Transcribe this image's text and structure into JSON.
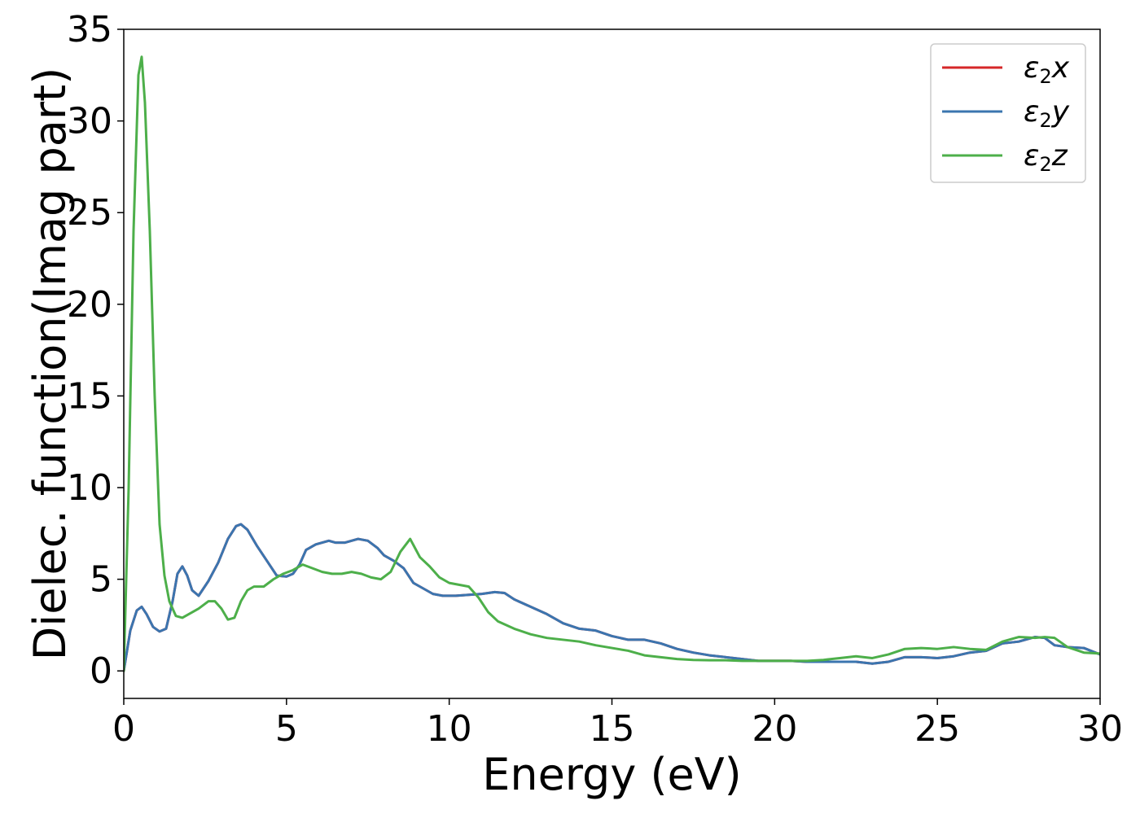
{
  "chart_data": {
    "type": "line",
    "title": "",
    "xlabel": "Energy (eV)",
    "ylabel": "Dielec. function(Imag part)",
    "xlim": [
      0,
      30
    ],
    "ylim": [
      -1.5,
      35
    ],
    "xticks": [
      0,
      5,
      10,
      15,
      20,
      25,
      30
    ],
    "yticks": [
      0,
      5,
      10,
      15,
      20,
      25,
      30,
      35
    ],
    "grid": false,
    "legend_position": "top-right",
    "series": [
      {
        "name": "ε2x",
        "legend_base": "ε",
        "legend_sub": "2",
        "legend_tail": "x",
        "color": "#d62728",
        "x": [
          0,
          0.2,
          0.4,
          0.55,
          0.7,
          0.9,
          1.1,
          1.3,
          1.5,
          1.65,
          1.8,
          1.95,
          2.1,
          2.3,
          2.6,
          2.9,
          3.2,
          3.45,
          3.6,
          3.8,
          4.1,
          4.4,
          4.7,
          5.0,
          5.2,
          5.4,
          5.6,
          5.9,
          6.1,
          6.3,
          6.5,
          6.8,
          7.0,
          7.2,
          7.5,
          7.8,
          8.0,
          8.3,
          8.6,
          8.9,
          9.2,
          9.5,
          9.8,
          10.2,
          10.6,
          11.0,
          11.4,
          11.7,
          12.0,
          12.5,
          13.0,
          13.5,
          14.0,
          14.5,
          15.0,
          15.5,
          16.0,
          16.5,
          17.0,
          17.5,
          18.0,
          18.5,
          19.0,
          19.5,
          20.0,
          20.5,
          21.0,
          21.5,
          22.0,
          22.5,
          23.0,
          23.5,
          24.0,
          24.5,
          25.0,
          25.5,
          26.0,
          26.5,
          27.0,
          27.5,
          28.0,
          28.3,
          28.6,
          29.0,
          29.5,
          30.0
        ],
        "y": [
          0,
          2.2,
          3.3,
          3.5,
          3.1,
          2.4,
          2.15,
          2.3,
          3.8,
          5.3,
          5.7,
          5.2,
          4.4,
          4.1,
          4.9,
          5.9,
          7.2,
          7.9,
          8.0,
          7.7,
          6.8,
          6.0,
          5.2,
          5.15,
          5.3,
          5.8,
          6.6,
          6.9,
          7.0,
          7.1,
          7.0,
          7.0,
          7.1,
          7.2,
          7.1,
          6.7,
          6.3,
          6.0,
          5.6,
          4.8,
          4.5,
          4.2,
          4.1,
          4.1,
          4.15,
          4.2,
          4.3,
          4.25,
          3.9,
          3.5,
          3.1,
          2.6,
          2.3,
          2.2,
          1.9,
          1.7,
          1.7,
          1.5,
          1.2,
          1.0,
          0.85,
          0.75,
          0.65,
          0.55,
          0.55,
          0.55,
          0.5,
          0.5,
          0.5,
          0.5,
          0.4,
          0.5,
          0.75,
          0.75,
          0.7,
          0.8,
          1.0,
          1.1,
          1.5,
          1.6,
          1.85,
          1.8,
          1.4,
          1.3,
          1.25,
          0.9
        ]
      },
      {
        "name": "ε2y",
        "legend_base": "ε",
        "legend_sub": "2",
        "legend_tail": "y",
        "color": "#3b75af",
        "x": [
          0,
          0.2,
          0.4,
          0.55,
          0.7,
          0.9,
          1.1,
          1.3,
          1.5,
          1.65,
          1.8,
          1.95,
          2.1,
          2.3,
          2.6,
          2.9,
          3.2,
          3.45,
          3.6,
          3.8,
          4.1,
          4.4,
          4.7,
          5.0,
          5.2,
          5.4,
          5.6,
          5.9,
          6.1,
          6.3,
          6.5,
          6.8,
          7.0,
          7.2,
          7.5,
          7.8,
          8.0,
          8.3,
          8.6,
          8.9,
          9.2,
          9.5,
          9.8,
          10.2,
          10.6,
          11.0,
          11.4,
          11.7,
          12.0,
          12.5,
          13.0,
          13.5,
          14.0,
          14.5,
          15.0,
          15.5,
          16.0,
          16.5,
          17.0,
          17.5,
          18.0,
          18.5,
          19.0,
          19.5,
          20.0,
          20.5,
          21.0,
          21.5,
          22.0,
          22.5,
          23.0,
          23.5,
          24.0,
          24.5,
          25.0,
          25.5,
          26.0,
          26.5,
          27.0,
          27.5,
          28.0,
          28.3,
          28.6,
          29.0,
          29.5,
          30.0
        ],
        "y": [
          0,
          2.2,
          3.3,
          3.5,
          3.1,
          2.4,
          2.15,
          2.3,
          3.8,
          5.3,
          5.7,
          5.2,
          4.4,
          4.1,
          4.9,
          5.9,
          7.2,
          7.9,
          8.0,
          7.7,
          6.8,
          6.0,
          5.2,
          5.15,
          5.3,
          5.8,
          6.6,
          6.9,
          7.0,
          7.1,
          7.0,
          7.0,
          7.1,
          7.2,
          7.1,
          6.7,
          6.3,
          6.0,
          5.6,
          4.8,
          4.5,
          4.2,
          4.1,
          4.1,
          4.15,
          4.2,
          4.3,
          4.25,
          3.9,
          3.5,
          3.1,
          2.6,
          2.3,
          2.2,
          1.9,
          1.7,
          1.7,
          1.5,
          1.2,
          1.0,
          0.85,
          0.75,
          0.65,
          0.55,
          0.55,
          0.55,
          0.5,
          0.5,
          0.5,
          0.5,
          0.4,
          0.5,
          0.75,
          0.75,
          0.7,
          0.8,
          1.0,
          1.1,
          1.5,
          1.6,
          1.85,
          1.8,
          1.4,
          1.3,
          1.25,
          0.9
        ]
      },
      {
        "name": "ε2z",
        "legend_base": "ε",
        "legend_sub": "2",
        "legend_tail": "z",
        "color": "#4daf4a",
        "x": [
          0,
          0.15,
          0.3,
          0.45,
          0.55,
          0.65,
          0.8,
          0.95,
          1.1,
          1.25,
          1.4,
          1.6,
          1.8,
          2.0,
          2.3,
          2.6,
          2.8,
          3.0,
          3.2,
          3.4,
          3.6,
          3.8,
          4.0,
          4.3,
          4.6,
          4.9,
          5.2,
          5.5,
          5.8,
          6.1,
          6.4,
          6.7,
          7.0,
          7.3,
          7.6,
          7.9,
          8.2,
          8.5,
          8.8,
          9.1,
          9.4,
          9.7,
          10.0,
          10.3,
          10.6,
          10.9,
          11.2,
          11.5,
          12.0,
          12.5,
          13.0,
          13.5,
          14.0,
          14.5,
          15.0,
          15.5,
          16.0,
          16.5,
          17.0,
          17.5,
          18.0,
          18.5,
          19.0,
          19.5,
          20.0,
          20.5,
          21.0,
          21.5,
          22.0,
          22.5,
          23.0,
          23.5,
          24.0,
          24.5,
          25.0,
          25.5,
          26.0,
          26.5,
          27.0,
          27.5,
          28.0,
          28.3,
          28.6,
          29.0,
          29.5,
          30.0
        ],
        "y": [
          0,
          10,
          24,
          32.5,
          33.5,
          31,
          24,
          15,
          8,
          5.2,
          3.8,
          3.0,
          2.9,
          3.1,
          3.4,
          3.8,
          3.8,
          3.4,
          2.8,
          2.9,
          3.8,
          4.4,
          4.6,
          4.6,
          5.0,
          5.3,
          5.5,
          5.8,
          5.6,
          5.4,
          5.3,
          5.3,
          5.4,
          5.3,
          5.1,
          5.0,
          5.4,
          6.5,
          7.2,
          6.2,
          5.7,
          5.1,
          4.8,
          4.7,
          4.6,
          4.0,
          3.2,
          2.7,
          2.3,
          2.0,
          1.8,
          1.7,
          1.6,
          1.4,
          1.25,
          1.1,
          0.85,
          0.75,
          0.65,
          0.6,
          0.58,
          0.58,
          0.55,
          0.55,
          0.55,
          0.55,
          0.55,
          0.6,
          0.7,
          0.8,
          0.7,
          0.9,
          1.2,
          1.25,
          1.2,
          1.3,
          1.2,
          1.15,
          1.6,
          1.85,
          1.8,
          1.85,
          1.8,
          1.3,
          1.0,
          0.95
        ]
      }
    ]
  }
}
